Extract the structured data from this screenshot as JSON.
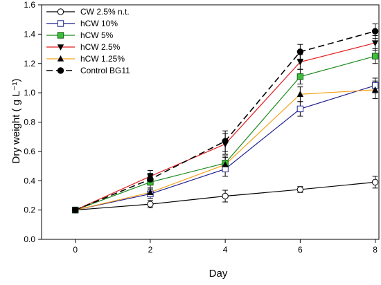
{
  "chart_data": {
    "type": "line",
    "title": "",
    "xlabel": "Day",
    "ylabel": "Dry weight ( g L⁻¹)",
    "x": [
      0,
      2,
      4,
      6,
      8
    ],
    "xlim": [
      -0.9,
      8.1
    ],
    "ylim": [
      0.0,
      1.6
    ],
    "xticks": [
      "0",
      "2",
      "4",
      "6",
      "8"
    ],
    "yticks": [
      "0.0",
      "0.2",
      "0.4",
      "0.6",
      "0.8",
      "1.0",
      "1.2",
      "1.4",
      "1.6"
    ],
    "legend_position": "top-left",
    "grid": false,
    "series": [
      {
        "name": "CW 2.5% n.t.",
        "color": "#000000",
        "marker": "circle-open",
        "dashed": false,
        "values": [
          0.2,
          0.24,
          0.295,
          0.34,
          0.39
        ],
        "errors": [
          0.0,
          0.025,
          0.04,
          0.02,
          0.04
        ]
      },
      {
        "name": "hCW 10%",
        "color": "#1f1f8f",
        "marker": "square-open",
        "dashed": false,
        "values": [
          0.2,
          0.31,
          0.48,
          0.89,
          1.05
        ],
        "errors": [
          0.0,
          0.03,
          0.05,
          0.05,
          0.05
        ]
      },
      {
        "name": "hCW 5%",
        "color": "#1e8a1e",
        "marker": "square-green",
        "dashed": false,
        "values": [
          0.2,
          0.39,
          0.52,
          1.11,
          1.25
        ],
        "errors": [
          0.0,
          0.04,
          0.05,
          0.05,
          0.05
        ]
      },
      {
        "name": "hCW 2.5%",
        "color": "#e31a1c",
        "marker": "triangle-down",
        "dashed": false,
        "values": [
          0.2,
          0.43,
          0.65,
          1.21,
          1.34
        ],
        "errors": [
          0.0,
          0.04,
          0.07,
          0.05,
          0.05
        ]
      },
      {
        "name": "hCW 1.25%",
        "color": "#f5a21b",
        "marker": "triangle-up",
        "dashed": false,
        "values": [
          0.2,
          0.32,
          0.51,
          0.99,
          1.02
        ],
        "errors": [
          0.0,
          0.03,
          0.05,
          0.05,
          0.06
        ]
      },
      {
        "name": "Control BG11",
        "color": "#000000",
        "marker": "circle-filled",
        "dashed": true,
        "values": [
          0.2,
          0.41,
          0.67,
          1.28,
          1.42
        ],
        "errors": [
          0.0,
          0.04,
          0.07,
          0.05,
          0.05
        ]
      }
    ]
  }
}
